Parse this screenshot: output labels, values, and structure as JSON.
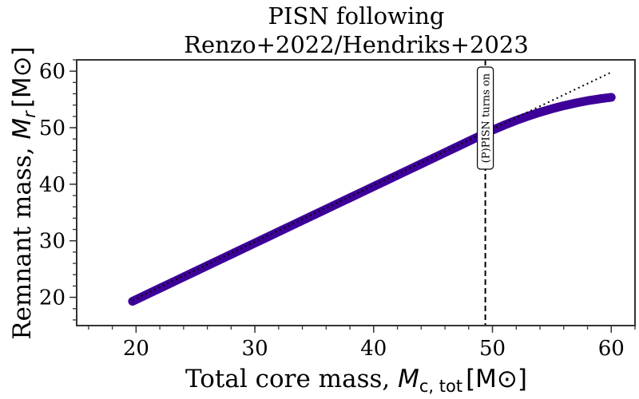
{
  "chart_data": {
    "type": "line",
    "title_lines": [
      "PISN following",
      "Renzo+2022/Hendriks+2023"
    ],
    "xlabel": "Total core mass, ",
    "xlabel_math": "M",
    "xlabel_sub": "c, tot",
    "xlabel_unit": "[M",
    "ylabel": "Remnant mass, ",
    "ylabel_math": "M",
    "ylabel_sub": "r",
    "ylabel_unit": "[M",
    "unit_close": "]",
    "xlim": [
      15,
      62
    ],
    "ylim": [
      15,
      62
    ],
    "xticks": [
      20,
      30,
      40,
      50,
      60
    ],
    "yticks": [
      20,
      30,
      40,
      50,
      60
    ],
    "minor_step": 2,
    "grid": false,
    "series": [
      {
        "style": "thick-solid",
        "color": "#3d0099",
        "x": [
          19.7,
          20,
          21,
          22,
          23,
          24,
          25,
          26,
          27,
          28,
          29,
          30,
          31,
          32,
          33,
          34,
          35,
          36,
          37,
          38,
          39,
          40,
          41,
          42,
          43,
          44,
          45,
          46,
          47,
          48,
          49,
          50,
          51,
          52,
          53,
          54,
          55,
          56,
          57,
          58,
          59,
          60
        ],
        "y": [
          19.3,
          19.6,
          20.6,
          21.6,
          22.6,
          23.6,
          24.6,
          25.6,
          26.6,
          27.6,
          28.6,
          29.6,
          30.6,
          31.6,
          32.6,
          33.6,
          34.6,
          35.6,
          36.6,
          37.6,
          38.6,
          39.6,
          40.6,
          41.6,
          42.6,
          43.6,
          44.6,
          45.6,
          46.6,
          47.6,
          48.6,
          49.57,
          50.46,
          51.29,
          52.04,
          52.73,
          53.34,
          53.89,
          54.36,
          54.77,
          55.1,
          55.37
        ]
      },
      {
        "style": "dotted",
        "color": "#000000",
        "x": [
          19.7,
          59.9
        ],
        "y": [
          19.5,
          59.7
        ]
      }
    ],
    "vline": {
      "x": 49.4,
      "style": "dashed",
      "color": "#000000"
    },
    "annotation": "(P)PISN turns on"
  }
}
